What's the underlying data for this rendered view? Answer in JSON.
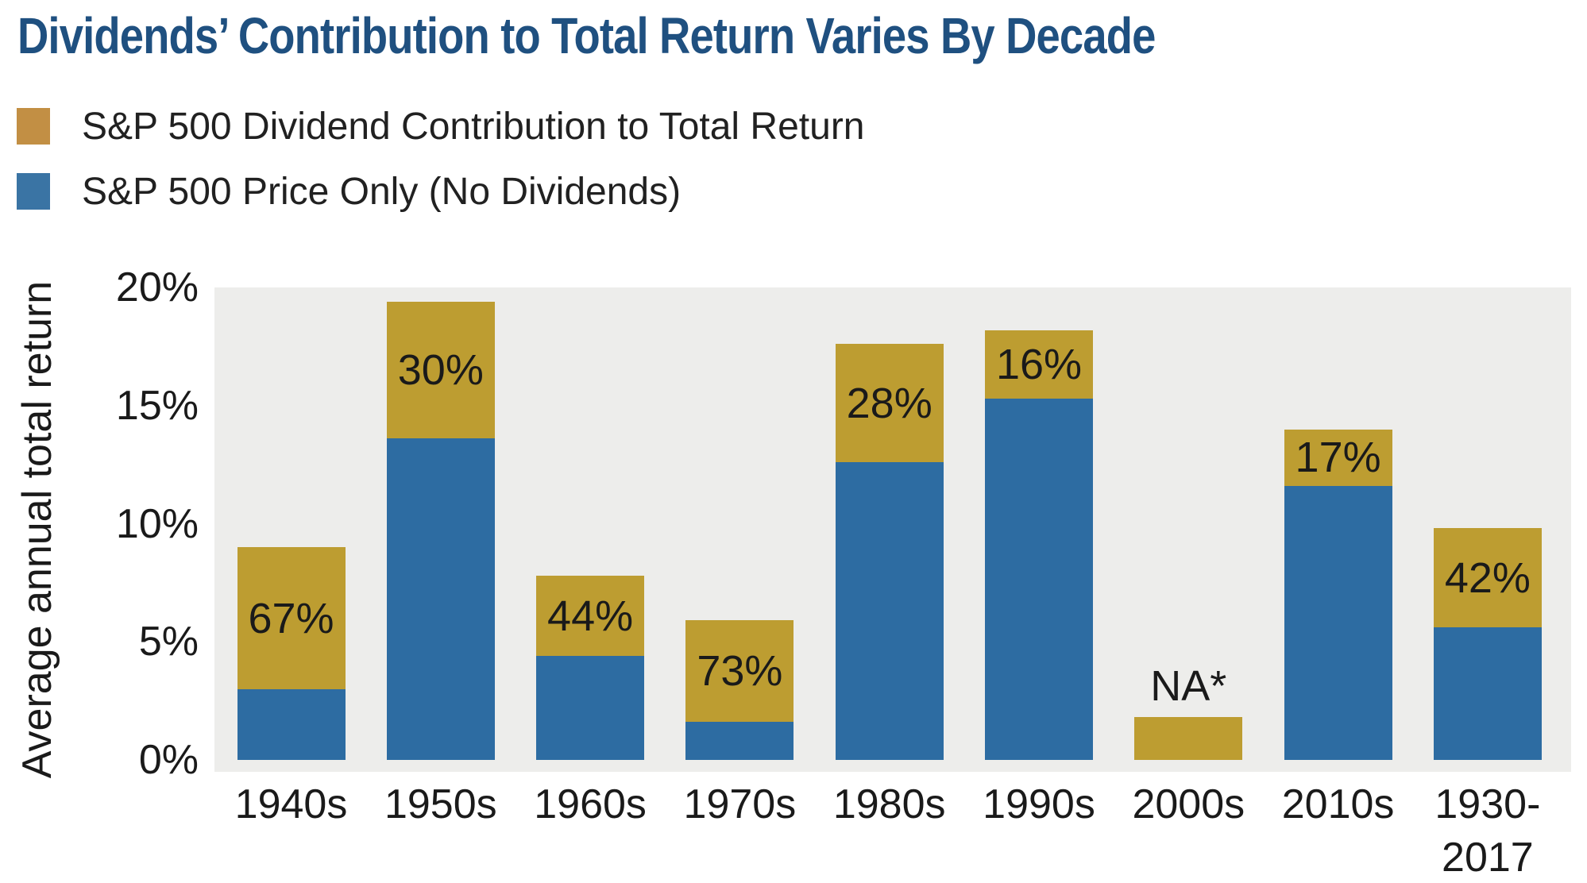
{
  "title": "Dividends’ Contribution to Total Return Varies By Decade",
  "legend": [
    {
      "label": "S&P 500 Dividend Contribution to Total Return",
      "color": "#C28F44",
      "swatch": "dividend-swatch"
    },
    {
      "label": "S&P 500 Price Only (No Dividends)",
      "color": "#3A74A4",
      "swatch": "price-swatch"
    }
  ],
  "chart_data": {
    "type": "bar",
    "stacked": true,
    "title": "Dividends’ Contribution to Total Return Varies By Decade",
    "xlabel": "",
    "ylabel": "Average annual total return",
    "ylim": [
      0,
      20
    ],
    "grid": false,
    "legend_position": "top-left",
    "plot_background": "#EDEDEB",
    "yticks": [
      {
        "value": 0,
        "label": "0%"
      },
      {
        "value": 5,
        "label": "5%"
      },
      {
        "value": 10,
        "label": "10%"
      },
      {
        "value": 15,
        "label": "15%"
      },
      {
        "value": 20,
        "label": "20%"
      }
    ],
    "categories": [
      "1940s",
      "1950s",
      "1960s",
      "1970s",
      "1980s",
      "1990s",
      "2000s",
      "2010s",
      "1930-\n2017"
    ],
    "series": [
      {
        "name": "S&P 500 Price Only (No Dividends)",
        "color": "#2D6CA2",
        "values": [
          3.0,
          13.6,
          4.4,
          1.6,
          12.6,
          15.3,
          null,
          11.6,
          5.6
        ]
      },
      {
        "name": "S&P 500 Dividend Contribution to Total Return",
        "color": "#BD9D31",
        "values": [
          6.0,
          5.8,
          3.4,
          4.3,
          5.0,
          2.9,
          1.8,
          2.4,
          4.2
        ]
      }
    ],
    "bar_labels": [
      "67%",
      "30%",
      "44%",
      "73%",
      "28%",
      "16%",
      "NA*",
      "17%",
      "42%"
    ],
    "colors": {
      "title": "#1F5080",
      "text": "#1A1A1A"
    }
  }
}
